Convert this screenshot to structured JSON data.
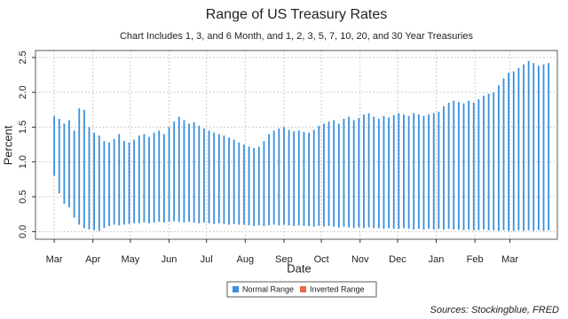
{
  "chart_data": {
    "type": "range",
    "title": "Range of US Treasury Rates",
    "subtitle": "Chart Includes 1, 3, and 6 Month, and 1, 2, 3, 5, 7, 10, 20, and 30 Year Treasuries",
    "x_label": "Date",
    "y_label": "Percent",
    "source": "Sources: Stockingblue, FRED",
    "xlim": [
      -15,
      403
    ],
    "xticks": [
      {
        "value": 0,
        "label": "Mar"
      },
      {
        "value": 31,
        "label": "Apr"
      },
      {
        "value": 61,
        "label": "May"
      },
      {
        "value": 92,
        "label": "Jun"
      },
      {
        "value": 122,
        "label": "Jul"
      },
      {
        "value": 153,
        "label": "Aug"
      },
      {
        "value": 184,
        "label": "Sep"
      },
      {
        "value": 214,
        "label": "Oct"
      },
      {
        "value": 245,
        "label": "Nov"
      },
      {
        "value": 275,
        "label": "Dec"
      },
      {
        "value": 306,
        "label": "Jan"
      },
      {
        "value": 337,
        "label": "Feb"
      },
      {
        "value": 365,
        "label": "Mar"
      }
    ],
    "ylim": [
      -0.11,
      2.6
    ],
    "yticks": [
      {
        "value": 0,
        "label": "0.0"
      },
      0.5,
      {
        "value": 1,
        "label": "1.0"
      },
      1.5,
      {
        "value": 2,
        "label": "2.0"
      },
      2.5
    ],
    "grid": true,
    "x": [
      0,
      4,
      8,
      12,
      16,
      20,
      24,
      28,
      32,
      36,
      40,
      44,
      48,
      52,
      56,
      60,
      64,
      68,
      72,
      76,
      80,
      84,
      88,
      92,
      96,
      100,
      104,
      108,
      112,
      116,
      120,
      124,
      128,
      132,
      136,
      140,
      144,
      148,
      152,
      156,
      160,
      164,
      168,
      172,
      176,
      180,
      184,
      188,
      192,
      196,
      200,
      204,
      208,
      212,
      216,
      220,
      224,
      228,
      232,
      236,
      240,
      244,
      248,
      252,
      256,
      260,
      264,
      268,
      272,
      276,
      280,
      284,
      288,
      292,
      296,
      300,
      304,
      308,
      312,
      316,
      320,
      324,
      328,
      332,
      336,
      340,
      344,
      348,
      352,
      356,
      360,
      364,
      368,
      372,
      376,
      380,
      384,
      388,
      392,
      396
    ],
    "series": [
      {
        "name": "Normal Range",
        "color": "#3a8fdc",
        "high": [
          1.66,
          1.62,
          1.55,
          1.6,
          1.45,
          1.77,
          1.75,
          1.5,
          1.42,
          1.38,
          1.3,
          1.28,
          1.33,
          1.4,
          1.3,
          1.28,
          1.32,
          1.38,
          1.4,
          1.36,
          1.42,
          1.45,
          1.4,
          1.5,
          1.58,
          1.65,
          1.6,
          1.55,
          1.57,
          1.52,
          1.48,
          1.45,
          1.42,
          1.4,
          1.38,
          1.35,
          1.32,
          1.28,
          1.25,
          1.22,
          1.2,
          1.22,
          1.3,
          1.4,
          1.45,
          1.48,
          1.5,
          1.46,
          1.44,
          1.45,
          1.43,
          1.42,
          1.46,
          1.52,
          1.55,
          1.58,
          1.6,
          1.55,
          1.62,
          1.65,
          1.6,
          1.63,
          1.68,
          1.7,
          1.65,
          1.62,
          1.66,
          1.64,
          1.67,
          1.7,
          1.68,
          1.66,
          1.7,
          1.68,
          1.66,
          1.68,
          1.7,
          1.72,
          1.8,
          1.85,
          1.88,
          1.86,
          1.84,
          1.88,
          1.85,
          1.9,
          1.95,
          1.98,
          2.0,
          2.1,
          2.2,
          2.28,
          2.3,
          2.35,
          2.4,
          2.45,
          2.42,
          2.38,
          2.4,
          2.42
        ],
        "low": [
          0.8,
          0.55,
          0.4,
          0.35,
          0.2,
          0.1,
          0.05,
          0.03,
          0.02,
          0.01,
          0.05,
          0.08,
          0.1,
          0.09,
          0.1,
          0.11,
          0.12,
          0.12,
          0.13,
          0.12,
          0.13,
          0.14,
          0.13,
          0.14,
          0.15,
          0.14,
          0.13,
          0.14,
          0.13,
          0.12,
          0.13,
          0.12,
          0.11,
          0.12,
          0.11,
          0.1,
          0.11,
          0.1,
          0.1,
          0.09,
          0.08,
          0.09,
          0.08,
          0.09,
          0.1,
          0.09,
          0.1,
          0.09,
          0.08,
          0.09,
          0.08,
          0.08,
          0.07,
          0.08,
          0.07,
          0.08,
          0.07,
          0.06,
          0.07,
          0.06,
          0.05,
          0.06,
          0.05,
          0.06,
          0.05,
          0.05,
          0.04,
          0.05,
          0.04,
          0.04,
          0.05,
          0.04,
          0.03,
          0.04,
          0.03,
          0.04,
          0.03,
          0.04,
          0.03,
          0.04,
          0.03,
          0.03,
          0.02,
          0.03,
          0.02,
          0.02,
          0.03,
          0.02,
          0.02,
          0.01,
          0.02,
          0.01,
          0.01,
          0.02,
          0.01,
          0.02,
          0.01,
          0.02,
          0.01,
          0.02
        ]
      },
      {
        "name": "Inverted Range",
        "color": "#f0644c",
        "high": [],
        "low": []
      }
    ]
  }
}
